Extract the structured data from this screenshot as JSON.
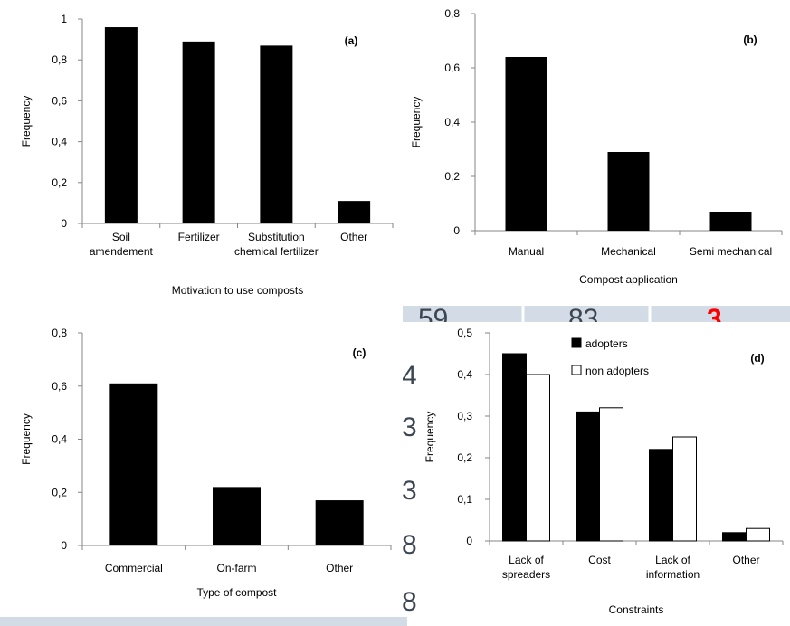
{
  "background_table": {
    "values": [
      "59",
      "83",
      "3",
      "4",
      "3",
      "3",
      "8",
      "8"
    ],
    "colors": {
      "band": "#d3dbe6",
      "accent": "#ff0000",
      "digit": "#3c4653"
    }
  },
  "chart_data": [
    {
      "type": "bar",
      "panel_label": "(a)",
      "categories": [
        [
          "Soil",
          "amendement"
        ],
        [
          "Fertilizer"
        ],
        [
          "Substitution",
          "chemical fertilizer"
        ],
        [
          "Other"
        ]
      ],
      "values": [
        0.96,
        0.89,
        0.87,
        0.11
      ],
      "ylabel": "Frequency",
      "xlabel": "Motivation to use  composts",
      "ylim": [
        0,
        1
      ],
      "yticks": [
        "0",
        "0,2",
        "0,4",
        "0,6",
        "0,8",
        "1"
      ],
      "grid": false,
      "bar_color": "#000000"
    },
    {
      "type": "bar",
      "panel_label": "(b)",
      "categories": [
        [
          "Manual"
        ],
        [
          "Mechanical"
        ],
        [
          "Semi mechanical"
        ]
      ],
      "values": [
        0.64,
        0.29,
        0.07
      ],
      "ylabel": "Frequency",
      "xlabel": "Compost application",
      "ylim": [
        0,
        0.8
      ],
      "yticks": [
        "0",
        "0,2",
        "0,4",
        "0,6",
        "0,8"
      ],
      "grid": false,
      "bar_color": "#000000"
    },
    {
      "type": "bar",
      "panel_label": "(c)",
      "categories": [
        [
          "Commercial"
        ],
        [
          "On-farm"
        ],
        [
          "Other"
        ]
      ],
      "values": [
        0.61,
        0.22,
        0.17
      ],
      "ylabel": "Frequency",
      "xlabel": "Type of compost",
      "ylim": [
        0,
        0.8
      ],
      "yticks": [
        "0",
        "0,2",
        "0,4",
        "0,6",
        "0,8"
      ],
      "grid": false,
      "bar_color": "#000000"
    },
    {
      "type": "bar",
      "panel_label": "(d)",
      "categories": [
        [
          "Lack of",
          "spreaders"
        ],
        [
          "Cost"
        ],
        [
          "Lack of",
          "information"
        ],
        [
          "Other"
        ]
      ],
      "series": [
        {
          "name": "adopters",
          "values": [
            0.45,
            0.31,
            0.22,
            0.02
          ],
          "color": "#000000"
        },
        {
          "name": "non adopters",
          "values": [
            0.4,
            0.32,
            0.25,
            0.03
          ],
          "color": "#ffffff"
        }
      ],
      "ylabel": "Frequency",
      "xlabel": "Constraints",
      "ylim": [
        0,
        0.5
      ],
      "yticks": [
        "0",
        "0,1",
        "0,2",
        "0,3",
        "0,4",
        "0,5"
      ],
      "grid": false,
      "legend": "top-center"
    }
  ]
}
